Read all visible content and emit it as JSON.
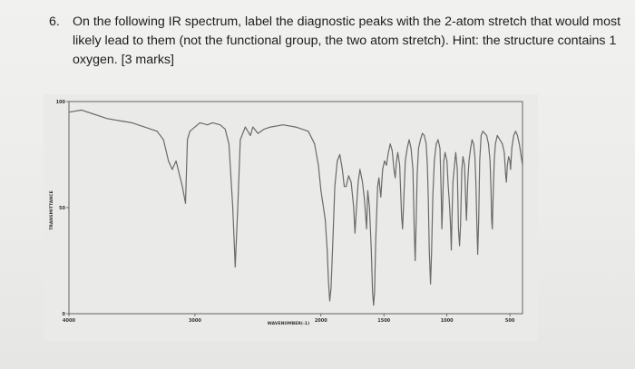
{
  "question": {
    "number": "6.",
    "text": "On the following IR spectrum, label the diagnostic peaks with the 2-atom stretch that would most likely lead to them (not the functional group, the two atom stretch). Hint: the structure contains 1 oxygen. [3 marks]"
  },
  "chart_data": {
    "type": "line",
    "title": "",
    "xlabel": "WAVENUMBER(-1)",
    "ylabel": "TRANSMITTANCE",
    "x_reversed": true,
    "xlim": [
      4000,
      400
    ],
    "ylim": [
      0,
      100
    ],
    "x_ticks": [
      {
        "value": 4000,
        "label": "4000"
      },
      {
        "value": 3000,
        "label": "3000"
      },
      {
        "value": 2000,
        "label": "2000"
      },
      {
        "value": 1500,
        "label": "1500"
      },
      {
        "value": 1000,
        "label": "1000"
      },
      {
        "value": 500,
        "label": "500"
      }
    ],
    "y_ticks": [
      {
        "value": 0,
        "label": "0"
      },
      {
        "value": 50,
        "label": "50"
      },
      {
        "value": 100,
        "label": "100"
      }
    ],
    "series": [
      {
        "points": [
          [
            4000,
            95
          ],
          [
            3900,
            96
          ],
          [
            3800,
            94
          ],
          [
            3700,
            92
          ],
          [
            3600,
            91
          ],
          [
            3500,
            90
          ],
          [
            3400,
            88
          ],
          [
            3300,
            86
          ],
          [
            3250,
            82
          ],
          [
            3210,
            72
          ],
          [
            3180,
            68
          ],
          [
            3150,
            72
          ],
          [
            3100,
            60
          ],
          [
            3075,
            52
          ],
          [
            3060,
            82
          ],
          [
            3040,
            86
          ],
          [
            3000,
            88
          ],
          [
            2960,
            90
          ],
          [
            2900,
            89
          ],
          [
            2860,
            90
          ],
          [
            2800,
            89
          ],
          [
            2760,
            87
          ],
          [
            2730,
            80
          ],
          [
            2700,
            50
          ],
          [
            2680,
            22
          ],
          [
            2660,
            50
          ],
          [
            2640,
            82
          ],
          [
            2600,
            88
          ],
          [
            2560,
            84
          ],
          [
            2540,
            88
          ],
          [
            2500,
            85
          ],
          [
            2450,
            87
          ],
          [
            2400,
            88
          ],
          [
            2300,
            89
          ],
          [
            2200,
            88
          ],
          [
            2100,
            86
          ],
          [
            2050,
            80
          ],
          [
            2020,
            70
          ],
          [
            2000,
            58
          ],
          [
            1980,
            50
          ],
          [
            1965,
            44
          ],
          [
            1950,
            30
          ],
          [
            1940,
            15
          ],
          [
            1930,
            6
          ],
          [
            1920,
            12
          ],
          [
            1905,
            35
          ],
          [
            1890,
            60
          ],
          [
            1870,
            72
          ],
          [
            1850,
            75
          ],
          [
            1830,
            68
          ],
          [
            1815,
            60
          ],
          [
            1800,
            60
          ],
          [
            1780,
            65
          ],
          [
            1760,
            62
          ],
          [
            1740,
            50
          ],
          [
            1730,
            38
          ],
          [
            1720,
            48
          ],
          [
            1705,
            62
          ],
          [
            1690,
            68
          ],
          [
            1670,
            62
          ],
          [
            1655,
            54
          ],
          [
            1645,
            46
          ],
          [
            1638,
            40
          ],
          [
            1628,
            58
          ],
          [
            1615,
            50
          ],
          [
            1600,
            30
          ],
          [
            1590,
            10
          ],
          [
            1582,
            4
          ],
          [
            1574,
            10
          ],
          [
            1565,
            35
          ],
          [
            1550,
            60
          ],
          [
            1540,
            64
          ],
          [
            1525,
            55
          ],
          [
            1510,
            68
          ],
          [
            1495,
            72
          ],
          [
            1480,
            70
          ],
          [
            1465,
            76
          ],
          [
            1450,
            80
          ],
          [
            1435,
            77
          ],
          [
            1420,
            68
          ],
          [
            1410,
            64
          ],
          [
            1400,
            72
          ],
          [
            1390,
            76
          ],
          [
            1375,
            70
          ],
          [
            1360,
            46
          ],
          [
            1352,
            40
          ],
          [
            1342,
            55
          ],
          [
            1330,
            72
          ],
          [
            1315,
            78
          ],
          [
            1300,
            82
          ],
          [
            1285,
            78
          ],
          [
            1270,
            68
          ],
          [
            1260,
            40
          ],
          [
            1252,
            25
          ],
          [
            1244,
            44
          ],
          [
            1236,
            66
          ],
          [
            1225,
            78
          ],
          [
            1210,
            82
          ],
          [
            1195,
            85
          ],
          [
            1180,
            84
          ],
          [
            1165,
            80
          ],
          [
            1155,
            70
          ],
          [
            1148,
            55
          ],
          [
            1140,
            30
          ],
          [
            1130,
            14
          ],
          [
            1122,
            28
          ],
          [
            1112,
            55
          ],
          [
            1100,
            72
          ],
          [
            1085,
            80
          ],
          [
            1070,
            82
          ],
          [
            1055,
            78
          ],
          [
            1045,
            56
          ],
          [
            1040,
            40
          ],
          [
            1034,
            50
          ],
          [
            1025,
            72
          ],
          [
            1015,
            76
          ],
          [
            1000,
            72
          ],
          [
            990,
            60
          ],
          [
            985,
            56
          ],
          [
            978,
            50
          ],
          [
            970,
            40
          ],
          [
            965,
            30
          ],
          [
            960,
            44
          ],
          [
            952,
            62
          ],
          [
            940,
            70
          ],
          [
            930,
            76
          ],
          [
            918,
            68
          ],
          [
            908,
            40
          ],
          [
            900,
            32
          ],
          [
            892,
            42
          ],
          [
            882,
            68
          ],
          [
            872,
            74
          ],
          [
            860,
            70
          ],
          [
            850,
            52
          ],
          [
            845,
            44
          ],
          [
            835,
            62
          ],
          [
            825,
            72
          ],
          [
            812,
            78
          ],
          [
            800,
            82
          ],
          [
            788,
            80
          ],
          [
            778,
            74
          ],
          [
            770,
            62
          ],
          [
            762,
            42
          ],
          [
            756,
            28
          ],
          [
            748,
            44
          ],
          [
            740,
            72
          ],
          [
            728,
            84
          ],
          [
            715,
            86
          ],
          [
            700,
            85
          ],
          [
            685,
            84
          ],
          [
            670,
            80
          ],
          [
            658,
            72
          ],
          [
            650,
            58
          ],
          [
            645,
            44
          ],
          [
            640,
            40
          ],
          [
            635,
            52
          ],
          [
            625,
            72
          ],
          [
            615,
            80
          ],
          [
            600,
            84
          ],
          [
            580,
            82
          ],
          [
            560,
            80
          ],
          [
            545,
            76
          ],
          [
            535,
            66
          ],
          [
            528,
            62
          ],
          [
            520,
            70
          ],
          [
            510,
            74
          ],
          [
            500,
            72
          ],
          [
            495,
            68
          ],
          [
            485,
            78
          ],
          [
            470,
            84
          ],
          [
            455,
            86
          ],
          [
            440,
            84
          ],
          [
            425,
            80
          ],
          [
            410,
            74
          ],
          [
            400,
            70
          ]
        ]
      }
    ]
  }
}
